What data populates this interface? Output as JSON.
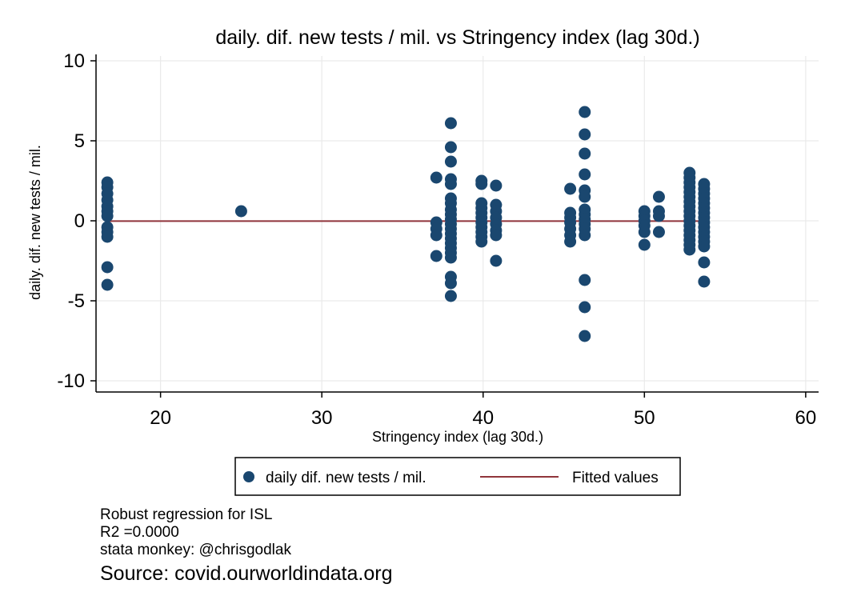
{
  "chart_data": {
    "type": "scatter",
    "title": "daily. dif. new tests / mil. vs Stringency index (lag 30d.)",
    "xlabel": "Stringency index (lag 30d.)",
    "ylabel": "daily. dif. new tests / mil.",
    "xlim": [
      16,
      60.8
    ],
    "ylim": [
      -10.7,
      10.3
    ],
    "xticks": [
      20,
      30,
      40,
      50,
      60
    ],
    "yticks": [
      10,
      5,
      0,
      -5,
      -10
    ],
    "grid": true,
    "legend_position": "bottom-center",
    "marker_color": "#1a476f",
    "fit_color": "#90353b",
    "series": [
      {
        "name": "daily dif. new tests / mil.",
        "kind": "points",
        "points": [
          [
            16.7,
            2.4
          ],
          [
            16.7,
            2.1
          ],
          [
            16.7,
            1.7
          ],
          [
            16.7,
            1.3
          ],
          [
            16.7,
            0.9
          ],
          [
            16.7,
            0.6
          ],
          [
            16.7,
            0.3
          ],
          [
            16.7,
            -0.4
          ],
          [
            16.7,
            -0.7
          ],
          [
            16.7,
            -1.0
          ],
          [
            16.7,
            -2.9
          ],
          [
            16.7,
            -4.0
          ],
          [
            25.0,
            0.6
          ],
          [
            37.1,
            2.7
          ],
          [
            37.1,
            -0.1
          ],
          [
            37.1,
            -0.5
          ],
          [
            37.1,
            -0.9
          ],
          [
            37.1,
            -2.2
          ],
          [
            38.0,
            6.1
          ],
          [
            38.0,
            4.6
          ],
          [
            38.0,
            3.7
          ],
          [
            38.0,
            2.6
          ],
          [
            38.0,
            2.3
          ],
          [
            38.0,
            1.4
          ],
          [
            38.0,
            1.1
          ],
          [
            38.0,
            0.7
          ],
          [
            38.0,
            0.4
          ],
          [
            38.0,
            0.1
          ],
          [
            38.0,
            -0.2
          ],
          [
            38.0,
            -0.5
          ],
          [
            38.0,
            -0.8
          ],
          [
            38.0,
            -1.1
          ],
          [
            38.0,
            -1.4
          ],
          [
            38.0,
            -1.7
          ],
          [
            38.0,
            -2.0
          ],
          [
            38.0,
            -2.3
          ],
          [
            38.0,
            -3.5
          ],
          [
            38.0,
            -3.9
          ],
          [
            38.0,
            -4.7
          ],
          [
            39.9,
            2.5
          ],
          [
            39.9,
            2.3
          ],
          [
            39.9,
            1.1
          ],
          [
            39.9,
            0.8
          ],
          [
            39.9,
            0.5
          ],
          [
            39.9,
            0.2
          ],
          [
            39.9,
            -0.1
          ],
          [
            39.9,
            -0.4
          ],
          [
            39.9,
            -0.7
          ],
          [
            39.9,
            -1.0
          ],
          [
            39.9,
            -1.3
          ],
          [
            40.8,
            2.2
          ],
          [
            40.8,
            1.0
          ],
          [
            40.8,
            0.6
          ],
          [
            40.8,
            0.2
          ],
          [
            40.8,
            -0.2
          ],
          [
            40.8,
            -0.6
          ],
          [
            40.8,
            -0.9
          ],
          [
            40.8,
            -2.5
          ],
          [
            45.4,
            2.0
          ],
          [
            45.4,
            0.5
          ],
          [
            45.4,
            0.2
          ],
          [
            45.4,
            -0.1
          ],
          [
            45.4,
            -0.5
          ],
          [
            45.4,
            -0.9
          ],
          [
            45.4,
            -1.3
          ],
          [
            46.3,
            6.8
          ],
          [
            46.3,
            5.4
          ],
          [
            46.3,
            4.2
          ],
          [
            46.3,
            2.9
          ],
          [
            46.3,
            1.9
          ],
          [
            46.3,
            1.5
          ],
          [
            46.3,
            0.7
          ],
          [
            46.3,
            0.4
          ],
          [
            46.3,
            0.1
          ],
          [
            46.3,
            -0.2
          ],
          [
            46.3,
            -0.5
          ],
          [
            46.3,
            -0.9
          ],
          [
            46.3,
            -3.7
          ],
          [
            46.3,
            -5.4
          ],
          [
            46.3,
            -7.2
          ],
          [
            50.0,
            0.6
          ],
          [
            50.0,
            0.3
          ],
          [
            50.0,
            0.0
          ],
          [
            50.0,
            -0.3
          ],
          [
            50.0,
            -0.7
          ],
          [
            50.0,
            -1.5
          ],
          [
            50.9,
            1.5
          ],
          [
            50.9,
            0.6
          ],
          [
            50.9,
            0.3
          ],
          [
            50.9,
            -0.7
          ],
          [
            52.8,
            3.0
          ],
          [
            52.8,
            2.7
          ],
          [
            52.8,
            2.4
          ],
          [
            52.8,
            2.1
          ],
          [
            52.8,
            1.8
          ],
          [
            52.8,
            1.5
          ],
          [
            52.8,
            1.2
          ],
          [
            52.8,
            0.9
          ],
          [
            52.8,
            0.6
          ],
          [
            52.8,
            0.3
          ],
          [
            52.8,
            0.0
          ],
          [
            52.8,
            -0.3
          ],
          [
            52.8,
            -0.6
          ],
          [
            52.8,
            -0.9
          ],
          [
            52.8,
            -1.2
          ],
          [
            52.8,
            -1.5
          ],
          [
            52.8,
            -1.8
          ],
          [
            53.7,
            2.3
          ],
          [
            53.7,
            2.0
          ],
          [
            53.7,
            1.7
          ],
          [
            53.7,
            1.4
          ],
          [
            53.7,
            1.1
          ],
          [
            53.7,
            0.8
          ],
          [
            53.7,
            0.5
          ],
          [
            53.7,
            0.2
          ],
          [
            53.7,
            -0.1
          ],
          [
            53.7,
            -0.4
          ],
          [
            53.7,
            -0.7
          ],
          [
            53.7,
            -1.0
          ],
          [
            53.7,
            -1.3
          ],
          [
            53.7,
            -1.6
          ],
          [
            53.7,
            -2.6
          ],
          [
            53.7,
            -3.8
          ]
        ]
      },
      {
        "name": "Fitted values",
        "kind": "line",
        "points": [
          [
            16.7,
            -0.02
          ],
          [
            53.7,
            -0.02
          ]
        ]
      }
    ]
  },
  "notes": [
    "Robust regression for ISL",
    "R2 =0.0000",
    "stata monkey: @chrisgodlak"
  ],
  "source": "Source: covid.ourworldindata.org"
}
